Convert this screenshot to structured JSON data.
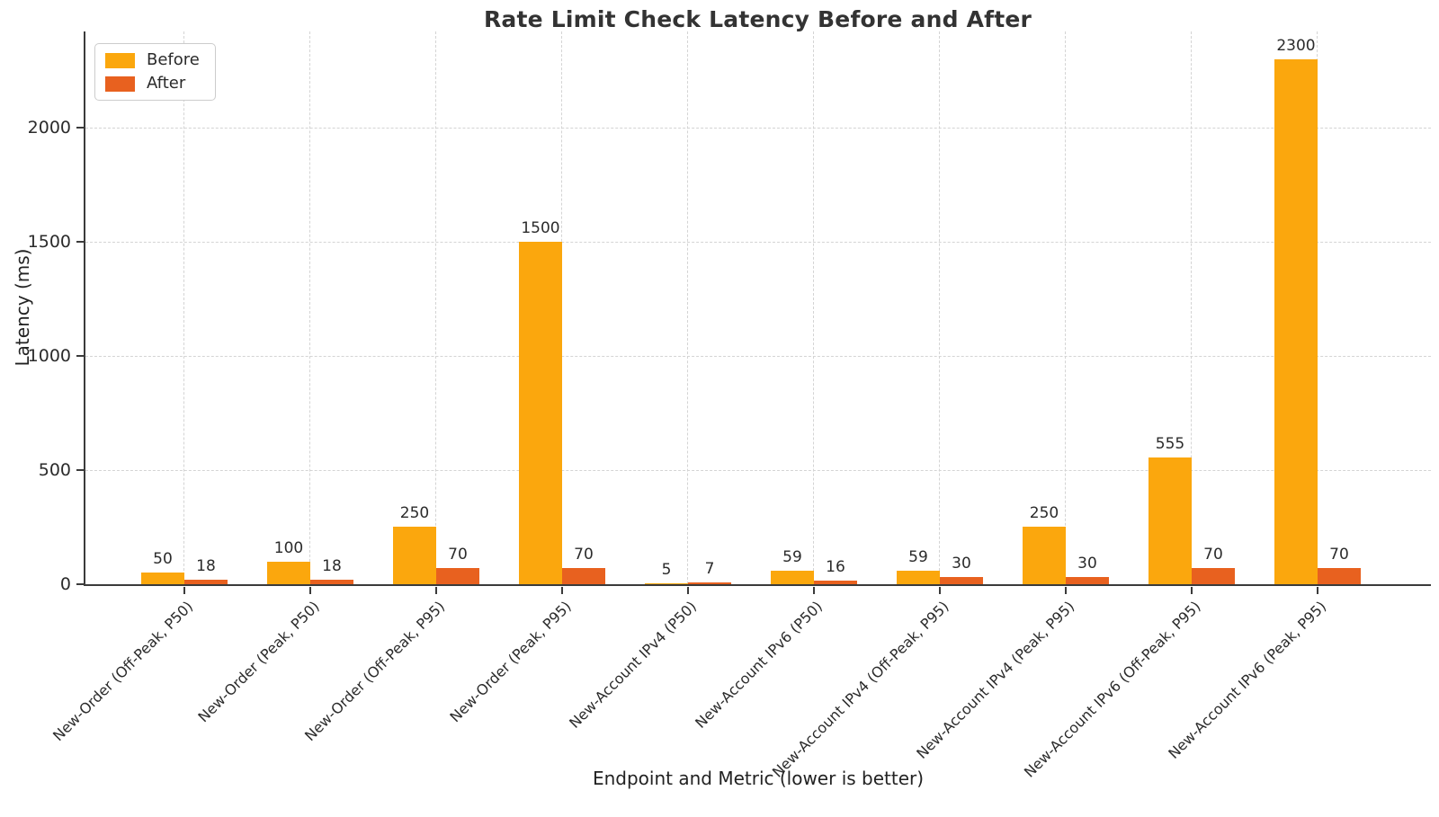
{
  "chart_data": {
    "type": "bar",
    "title": "Rate Limit Check Latency Before and After",
    "xlabel": "Endpoint and Metric (lower is better)",
    "ylabel": "Latency (ms)",
    "categories": [
      "New-Order (Off-Peak, P50)",
      "New-Order (Peak, P50)",
      "New-Order (Off-Peak, P95)",
      "New-Order (Peak, P95)",
      "New-Account IPv4 (P50)",
      "New-Account IPv6 (P50)",
      "New-Account IPv4 (Off-Peak, P95)",
      "New-Account IPv4 (Peak, P95)",
      "New-Account IPv6 (Off-Peak, P95)",
      "New-Account IPv6 (Peak, P95)"
    ],
    "series": [
      {
        "name": "Before",
        "color": "#FBA70D",
        "values": [
          50,
          100,
          250,
          1500,
          5,
          59,
          59,
          250,
          555,
          2300
        ]
      },
      {
        "name": "After",
        "color": "#E8611F",
        "values": [
          18,
          18,
          70,
          70,
          7,
          16,
          30,
          30,
          70,
          70
        ]
      }
    ],
    "yticks": [
      0,
      500,
      1000,
      1500,
      2000
    ],
    "ylim": [
      0,
      2420
    ],
    "grid": true,
    "grid_style": "dashed",
    "bar_value_labels": true,
    "legend_position": "upper-left"
  }
}
